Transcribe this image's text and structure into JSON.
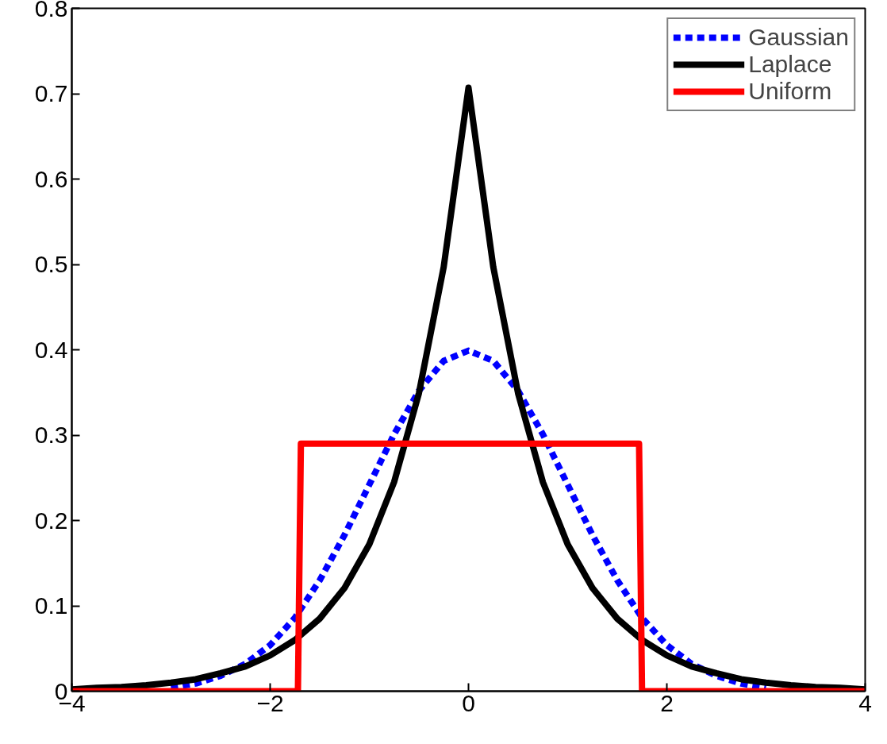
{
  "chart_data": {
    "type": "line",
    "xlim": [
      -4,
      4
    ],
    "ylim": [
      0,
      0.8
    ],
    "xticks": [
      {
        "value": -4,
        "label": "−4"
      },
      {
        "value": -2,
        "label": "−2"
      },
      0,
      2,
      4
    ],
    "yticks": [
      0,
      0.1,
      0.2,
      0.3,
      0.4,
      0.5,
      0.6,
      0.7,
      0.8
    ],
    "grid": false,
    "legend": "top right",
    "marker": "none",
    "series": [
      {
        "name": "Gaussian",
        "color": "#0000ff",
        "line_style": "dashed",
        "x": [
          -3,
          -2.75,
          -2.5,
          -2.25,
          -2,
          -1.75,
          -1.5,
          -1.25,
          -1,
          -0.75,
          -0.5,
          -0.25,
          0,
          0.25,
          0.5,
          0.75,
          1,
          1.25,
          1.5,
          1.75,
          2,
          2.25,
          2.5,
          2.75,
          3
        ],
        "values": [
          0.004,
          0.009,
          0.018,
          0.032,
          0.054,
          0.086,
          0.13,
          0.183,
          0.242,
          0.301,
          0.352,
          0.387,
          0.399,
          0.387,
          0.352,
          0.301,
          0.242,
          0.183,
          0.13,
          0.086,
          0.054,
          0.032,
          0.018,
          0.009,
          0.004
        ]
      },
      {
        "name": "Laplace",
        "color": "#000000",
        "line_style": "solid",
        "x": [
          -4,
          -3.75,
          -3.5,
          -3.25,
          -3,
          -2.75,
          -2.5,
          -2.25,
          -2,
          -1.75,
          -1.5,
          -1.25,
          -1,
          -0.75,
          -0.5,
          -0.25,
          0,
          0.25,
          0.5,
          0.75,
          1,
          1.25,
          1.5,
          1.75,
          2,
          2.25,
          2.5,
          2.75,
          3,
          3.25,
          3.5,
          3.75,
          4
        ],
        "values": [
          0.002,
          0.004,
          0.005,
          0.007,
          0.01,
          0.014,
          0.021,
          0.029,
          0.042,
          0.06,
          0.085,
          0.121,
          0.172,
          0.245,
          0.349,
          0.497,
          0.707,
          0.497,
          0.349,
          0.245,
          0.172,
          0.121,
          0.085,
          0.06,
          0.042,
          0.029,
          0.021,
          0.014,
          0.01,
          0.007,
          0.005,
          0.004,
          0.002
        ]
      },
      {
        "name": "Uniform",
        "color": "#ff0000",
        "line_style": "solid",
        "x": [
          -4,
          -1.72,
          -1.69,
          1.72,
          1.75,
          4
        ],
        "values": [
          0,
          0,
          0.29,
          0.29,
          0,
          0
        ]
      }
    ]
  }
}
